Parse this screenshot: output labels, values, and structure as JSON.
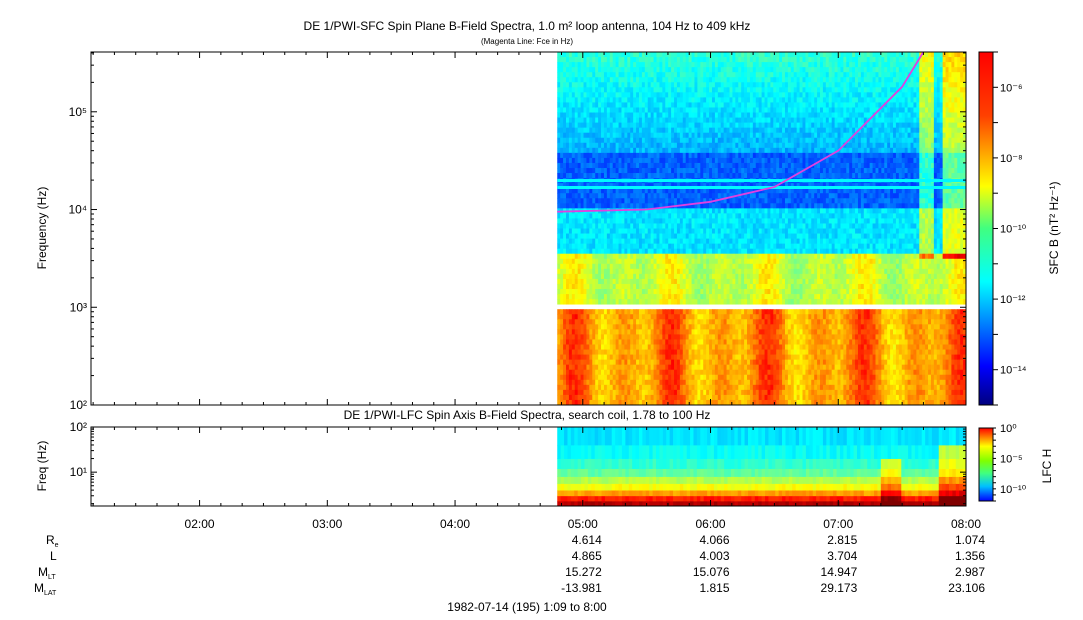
{
  "chart_data": [
    {
      "type": "heatmap",
      "title": "DE 1/PWI-SFC  Spin Plane B-Field Spectra, 1.0 m² loop antenna, 104 Hz to 409 kHz",
      "subtitle": "(Magenta Line: Fce in Hz)",
      "ylabel": "Frequency (Hz)",
      "yscale": "log",
      "ylim": [
        100,
        409000
      ],
      "yticks": [
        {
          "v": 100,
          "label": "10²"
        },
        {
          "v": 1000,
          "label": "10³"
        },
        {
          "v": 10000,
          "label": "10⁴"
        },
        {
          "v": 100000,
          "label": "10⁵"
        }
      ],
      "data_start": "04:48",
      "data_gap_hz": [
        940,
        1060
      ],
      "colorbar": {
        "label": "SFC B (nT² Hz⁻¹)",
        "scale": "log",
        "range": [
          1e-15,
          1e-05
        ],
        "ticks": [
          {
            "v": -6,
            "label": "10⁻⁶"
          },
          {
            "v": -8,
            "label": "10⁻⁸"
          },
          {
            "v": -10,
            "label": "10⁻¹⁰"
          },
          {
            "v": -12,
            "label": "10⁻¹²"
          },
          {
            "v": -14,
            "label": "10⁻¹⁴"
          }
        ]
      },
      "fce_line": {
        "color": "#e040e0",
        "x": [
          "04:48",
          "05:30",
          "06:00",
          "06:30",
          "07:00",
          "07:30",
          "07:40"
        ],
        "y": [
          9500,
          10000,
          12000,
          17000,
          40000,
          180000,
          409000
        ]
      }
    },
    {
      "type": "heatmap",
      "title": "DE 1/PWI-LFC  Spin Axis B-Field Spectra, search coil, 1.78 to 100 Hz",
      "ylabel": "Freq (Hz)",
      "yscale": "log",
      "ylim": [
        1.78,
        100
      ],
      "yticks": [
        {
          "v": 10,
          "label": "10¹"
        },
        {
          "v": 100,
          "label": "10²"
        }
      ],
      "data_start": "04:48",
      "colorbar": {
        "label": "LFC H",
        "scale": "log",
        "range": [
          1e-12,
          1
        ],
        "ticks": [
          {
            "v": 0,
            "label": "10⁰"
          },
          {
            "v": -5,
            "label": "10⁻⁵"
          },
          {
            "v": -10,
            "label": "10⁻¹⁰"
          }
        ]
      }
    }
  ],
  "time_axis": {
    "start": "01:09",
    "end": "08:00",
    "ticks": [
      "02:00",
      "03:00",
      "04:00",
      "05:00",
      "06:00",
      "07:00",
      "08:00"
    ]
  },
  "ephemeris": {
    "rows": [
      {
        "label": "Re",
        "values": [
          "4.614",
          "4.066",
          "2.815",
          "1.074"
        ]
      },
      {
        "label": "L",
        "values": [
          "4.865",
          "4.003",
          "3.704",
          "1.356"
        ]
      },
      {
        "label": "MLT",
        "values": [
          "15.272",
          "15.076",
          "14.947",
          "2.987"
        ]
      },
      {
        "label": "MLAT",
        "values": [
          "-13.981",
          "1.815",
          "29.173",
          "23.106"
        ]
      }
    ],
    "times": [
      "05:00",
      "06:00",
      "07:00",
      "08:00"
    ]
  },
  "footer": "1982-07-14 (195) 1:09 to 8:00"
}
